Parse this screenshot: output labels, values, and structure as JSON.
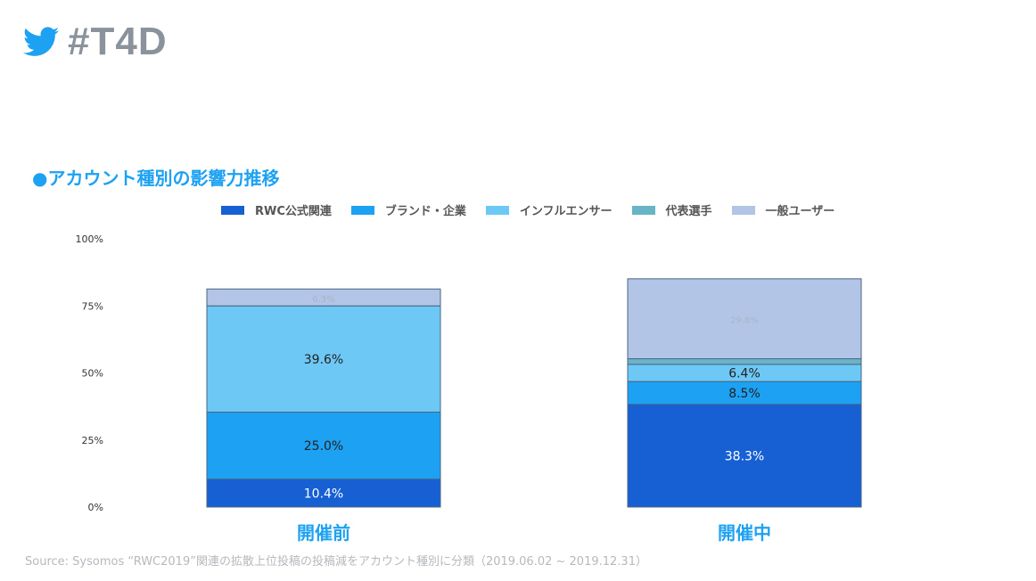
{
  "header": {
    "logo_text": "#T4D"
  },
  "chart_data": {
    "type": "bar",
    "stacked": true,
    "title": "●アカウント種別の影響力推移",
    "categories": [
      "開催前",
      "開催中"
    ],
    "series": [
      {
        "name": "RWC公式関連",
        "color": "#1660d4",
        "values": [
          10.4,
          38.3
        ],
        "labels": [
          "10.4%",
          "38.3%"
        ]
      },
      {
        "name": "ブランド・企業",
        "color": "#1da1f2",
        "values": [
          25.0,
          8.5
        ],
        "labels": [
          "25.0%",
          "8.5%"
        ]
      },
      {
        "name": "インフルエンサー",
        "color": "#6ec8f5",
        "values": [
          39.6,
          6.4
        ],
        "labels": [
          "39.6%",
          "6.4%"
        ]
      },
      {
        "name": "代表選手",
        "color": "#6ab4c8",
        "values": [
          0,
          2.1
        ],
        "labels": [
          "",
          ""
        ]
      },
      {
        "name": "一般ユーザー",
        "color": "#b3c5e6",
        "values": [
          6.3,
          29.8
        ],
        "labels": [
          "6.3%",
          "29.8%"
        ]
      }
    ],
    "extra_segment_note": "インフルエンサー light segment",
    "yticks": [
      "0%",
      "25%",
      "50%",
      "75%",
      "100%"
    ],
    "ylim": [
      0,
      100
    ],
    "legend_position": "top"
  },
  "source": "Source: Sysomos “RWC2019”関連の拡散上位投稿の投稿減をアカウント種別に分類（2019.06.02 ~ 2019.12.31）"
}
